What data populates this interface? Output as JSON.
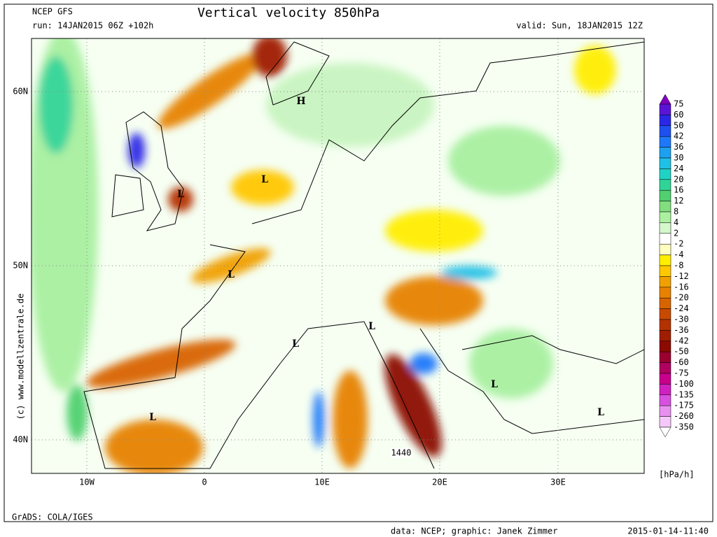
{
  "header": {
    "model": "NCEP GFS",
    "run": "run: 14JAN2015 06Z +102h",
    "title": "Vertical velocity 850hPa",
    "valid": "valid: Sun, 18JAN2015 12Z"
  },
  "axes": {
    "lat_labels": [
      "60N",
      "50N",
      "40N"
    ],
    "lon_labels": [
      "10W",
      "0",
      "10E",
      "20E",
      "30E"
    ]
  },
  "map_labels": [
    "H",
    "L",
    "L",
    "L",
    "L",
    "L",
    "L",
    "L",
    "L",
    "1440"
  ],
  "colorbar": {
    "labels": [
      "75",
      "60",
      "50",
      "42",
      "36",
      "30",
      "24",
      "20",
      "16",
      "12",
      "8",
      "4",
      "2",
      "-2",
      "-4",
      "-8",
      "-12",
      "-16",
      "-20",
      "-24",
      "-30",
      "-36",
      "-42",
      "-50",
      "-60",
      "-75",
      "-100",
      "-135",
      "-175",
      "-260",
      "-350"
    ],
    "colors": [
      "#8000c0",
      "#5a14d8",
      "#2a28e6",
      "#1e50f0",
      "#1e78fa",
      "#1ea0f0",
      "#20c0e6",
      "#20d2c4",
      "#30d496",
      "#50d06e",
      "#82de7e",
      "#aaf0a0",
      "#d4f8cc",
      "#ffffff",
      "#ffffc0",
      "#ffee00",
      "#ffc800",
      "#f0a000",
      "#e68200",
      "#d86400",
      "#c84a00",
      "#b43200",
      "#a01e00",
      "#8c0a00",
      "#9a0030",
      "#b00060",
      "#c8008c",
      "#d020c0",
      "#d850e0",
      "#e890f0",
      "#f4c8f8",
      "#ffffff"
    ],
    "units": "[hPa/h]"
  },
  "footer": {
    "software": "GrADS: COLA/IGES",
    "credit": "data: NCEP; graphic: Janek Zimmer",
    "timestamp": "2015-01-14-11:40",
    "side": "(c) www.modellzentrale.de"
  }
}
